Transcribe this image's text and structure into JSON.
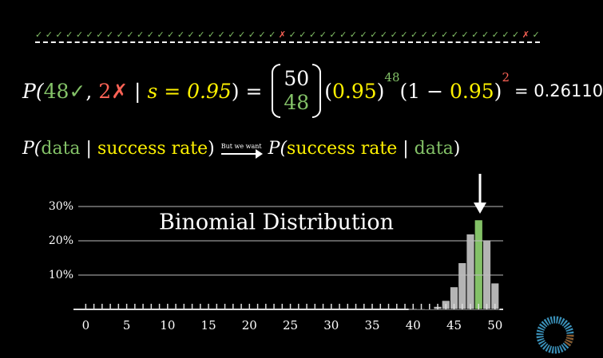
{
  "trial_marks": [
    "✓",
    "✓",
    "✓",
    "✓",
    "✓",
    "✓",
    "✓",
    "✓",
    "✓",
    "✓",
    "✓",
    "✓",
    "✓",
    "✓",
    "✓",
    "✓",
    "✓",
    "✓",
    "✓",
    "✓",
    "✓",
    "✓",
    "✓",
    "✓",
    "✗",
    "✓",
    "✓",
    "✓",
    "✓",
    "✓",
    "✓",
    "✓",
    "✓",
    "✓",
    "✓",
    "✓",
    "✓",
    "✓",
    "✓",
    "✓",
    "✓",
    "✓",
    "✓",
    "✓",
    "✓",
    "✓",
    "✓",
    "✓",
    "✗",
    "✓"
  ],
  "formula": [
    "P(",
    "48",
    "✓",
    ", ",
    "2",
    "✗",
    " | ",
    "s = 0.95",
    ") = ",
    "50",
    "48",
    "(",
    "0.95",
    ")",
    "48",
    "(1 − ",
    "0.95",
    ")",
    "2",
    "= 0.26110"
  ],
  "question": [
    "P(",
    "data",
    " | ",
    "success rate",
    ")",
    "But we want",
    "P(",
    "success rate",
    " | ",
    "data",
    ")"
  ],
  "chart_data": {
    "type": "bar",
    "title": "Binomial Distribution",
    "x": [
      0,
      1,
      2,
      3,
      4,
      5,
      6,
      7,
      8,
      9,
      10,
      11,
      12,
      13,
      14,
      15,
      16,
      17,
      18,
      19,
      20,
      21,
      22,
      23,
      24,
      25,
      26,
      27,
      28,
      29,
      30,
      31,
      32,
      33,
      34,
      35,
      36,
      37,
      38,
      39,
      40,
      41,
      42,
      43,
      44,
      45,
      46,
      47,
      48,
      49,
      50
    ],
    "values": [
      0,
      0,
      0,
      0,
      0,
      0,
      0,
      0,
      0,
      0,
      0,
      0,
      0,
      0,
      0,
      0,
      0,
      0,
      0,
      0,
      0,
      0,
      0,
      0,
      0,
      0,
      0,
      0,
      0,
      0,
      0,
      0,
      0,
      0,
      0,
      0,
      0,
      0,
      0,
      0,
      0.01,
      0.06,
      0.24,
      0.86,
      2.6,
      6.58,
      13.6,
      21.99,
      26.11,
      20.25,
      7.69
    ],
    "colors": [
      "#b4b4b4",
      "#b4b4b4",
      "#b4b4b4",
      "#b4b4b4",
      "#b4b4b4",
      "#b4b4b4",
      "#b4b4b4",
      "#b4b4b4",
      "#b4b4b4",
      "#b4b4b4",
      "#b4b4b4",
      "#b4b4b4",
      "#b4b4b4",
      "#b4b4b4",
      "#b4b4b4",
      "#b4b4b4",
      "#b4b4b4",
      "#b4b4b4",
      "#b4b4b4",
      "#b4b4b4",
      "#b4b4b4",
      "#b4b4b4",
      "#b4b4b4",
      "#b4b4b4",
      "#b4b4b4",
      "#b4b4b4",
      "#b4b4b4",
      "#b4b4b4",
      "#b4b4b4",
      "#b4b4b4",
      "#b4b4b4",
      "#b4b4b4",
      "#b4b4b4",
      "#b4b4b4",
      "#b4b4b4",
      "#b4b4b4",
      "#b4b4b4",
      "#b4b4b4",
      "#b4b4b4",
      "#b4b4b4",
      "#b4b4b4",
      "#b4b4b4",
      "#b4b4b4",
      "#b4b4b4",
      "#b4b4b4",
      "#b4b4b4",
      "#b4b4b4",
      "#b4b4b4",
      "#83c167",
      "#b4b4b4",
      "#b4b4b4"
    ],
    "xlim": [
      -1.5,
      51
    ],
    "xticks": [
      0,
      5,
      10,
      15,
      20,
      25,
      30,
      35,
      40,
      45,
      50
    ],
    "ylim": [
      0,
      30
    ],
    "yticks": [
      {
        "value": 10,
        "label": "10%"
      },
      {
        "value": 20,
        "label": "20%"
      },
      {
        "value": 30,
        "label": "30%"
      }
    ],
    "grid": true
  }
}
